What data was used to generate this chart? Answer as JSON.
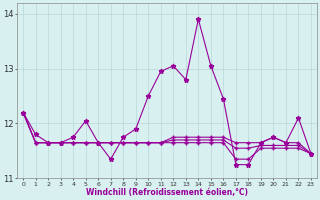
{
  "xlabel": "Windchill (Refroidissement éolien,°C)",
  "x": [
    0,
    1,
    2,
    3,
    4,
    5,
    6,
    7,
    8,
    9,
    10,
    11,
    12,
    13,
    14,
    15,
    16,
    17,
    18,
    19,
    20,
    21,
    22,
    23
  ],
  "y_main": [
    12.2,
    11.8,
    11.65,
    11.65,
    11.75,
    12.05,
    11.65,
    11.35,
    11.75,
    11.9,
    12.5,
    12.95,
    13.05,
    12.8,
    13.9,
    13.05,
    12.45,
    11.25,
    11.25,
    11.65,
    11.75,
    11.65,
    12.1,
    11.45
  ],
  "y_min": [
    12.2,
    11.65,
    11.65,
    11.65,
    11.65,
    11.65,
    11.65,
    11.65,
    11.65,
    11.65,
    11.65,
    11.65,
    11.65,
    11.65,
    11.65,
    11.65,
    11.65,
    11.35,
    11.35,
    11.55,
    11.55,
    11.55,
    11.55,
    11.45
  ],
  "y_max": [
    12.2,
    11.65,
    11.65,
    11.65,
    11.65,
    11.65,
    11.65,
    11.65,
    11.65,
    11.65,
    11.65,
    11.65,
    11.75,
    11.75,
    11.75,
    11.75,
    11.75,
    11.65,
    11.65,
    11.65,
    11.75,
    11.65,
    11.65,
    11.45
  ],
  "y_avg": [
    12.2,
    11.65,
    11.65,
    11.65,
    11.65,
    11.65,
    11.65,
    11.65,
    11.65,
    11.65,
    11.65,
    11.65,
    11.7,
    11.7,
    11.7,
    11.7,
    11.7,
    11.55,
    11.55,
    11.6,
    11.6,
    11.6,
    11.6,
    11.45
  ],
  "line_color": "#990099",
  "bg_color": "#d8f0f0",
  "grid_color": "#b8d8d8",
  "ylim": [
    11.0,
    14.2
  ],
  "yticks": [
    11,
    12,
    13,
    14
  ],
  "xtick_labels": [
    "0",
    "1",
    "2",
    "3",
    "4",
    "5",
    "6",
    "7",
    "8",
    "9",
    "10",
    "11",
    "12",
    "13",
    "14",
    "15",
    "16",
    "17",
    "18",
    "19",
    "20",
    "21",
    "22",
    "23"
  ]
}
